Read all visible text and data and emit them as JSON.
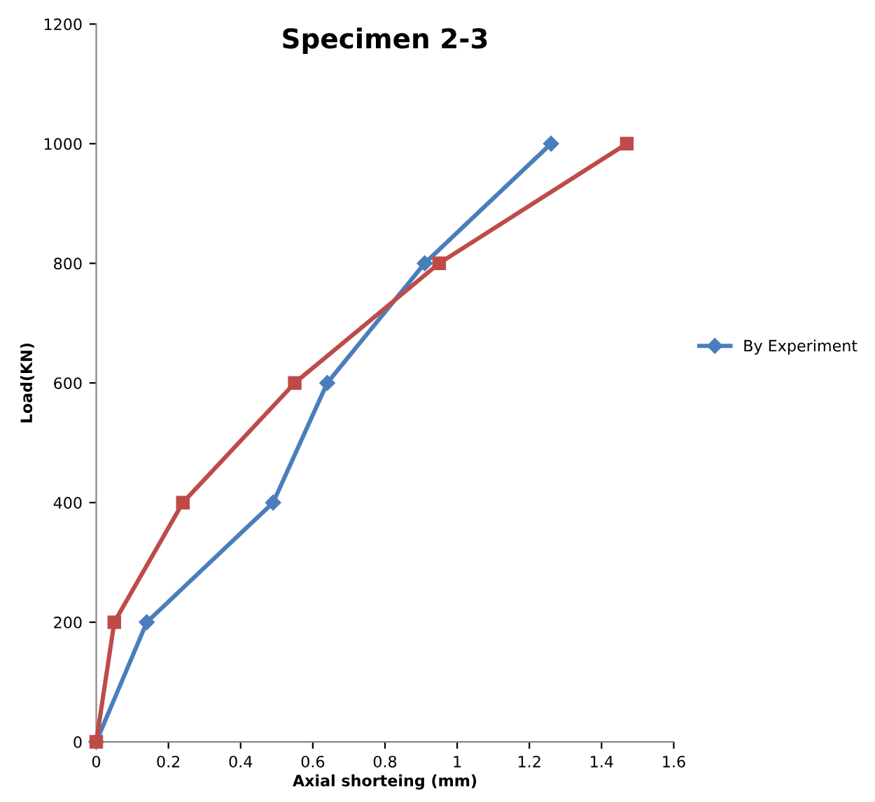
{
  "chart_data": {
    "type": "line",
    "title": "Specimen 2-3",
    "xlabel": "Axial shorteing (mm)",
    "ylabel": "Load(KN)",
    "xlim": [
      0,
      1.6
    ],
    "xticks": [
      0,
      0.2,
      0.4,
      0.6,
      0.8,
      1,
      1.2,
      1.4,
      1.6
    ],
    "ylim": [
      0,
      1200
    ],
    "yticks": [
      0,
      200,
      400,
      600,
      800,
      1000,
      1200
    ],
    "grid": false,
    "legend": "right",
    "series": [
      {
        "name": "By Experiment",
        "color": "#4a7ebb",
        "marker": "diamond",
        "x": [
          0,
          0.14,
          0.49,
          0.64,
          0.91,
          1.26
        ],
        "values": [
          0,
          200,
          400,
          600,
          800,
          1000
        ]
      },
      {
        "color": "#be4b48",
        "marker": "square",
        "x": [
          0,
          0.05,
          0.24,
          0.55,
          0.95,
          1.47
        ],
        "values": [
          0,
          200,
          400,
          600,
          800,
          1000
        ]
      }
    ]
  }
}
